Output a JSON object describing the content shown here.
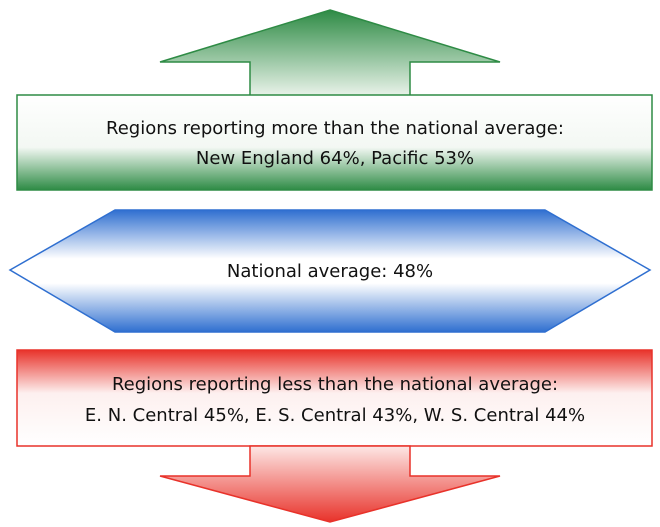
{
  "above": {
    "heading": "Regions reporting more than the national average:",
    "detail": "New England 64%, Pacific 53%"
  },
  "average": {
    "label": "National average: 48%"
  },
  "below": {
    "heading": "Regions reporting less than the national average:",
    "detail": "E. N. Central 45%, E. S. Central 43%, W. S. Central 44%"
  }
}
